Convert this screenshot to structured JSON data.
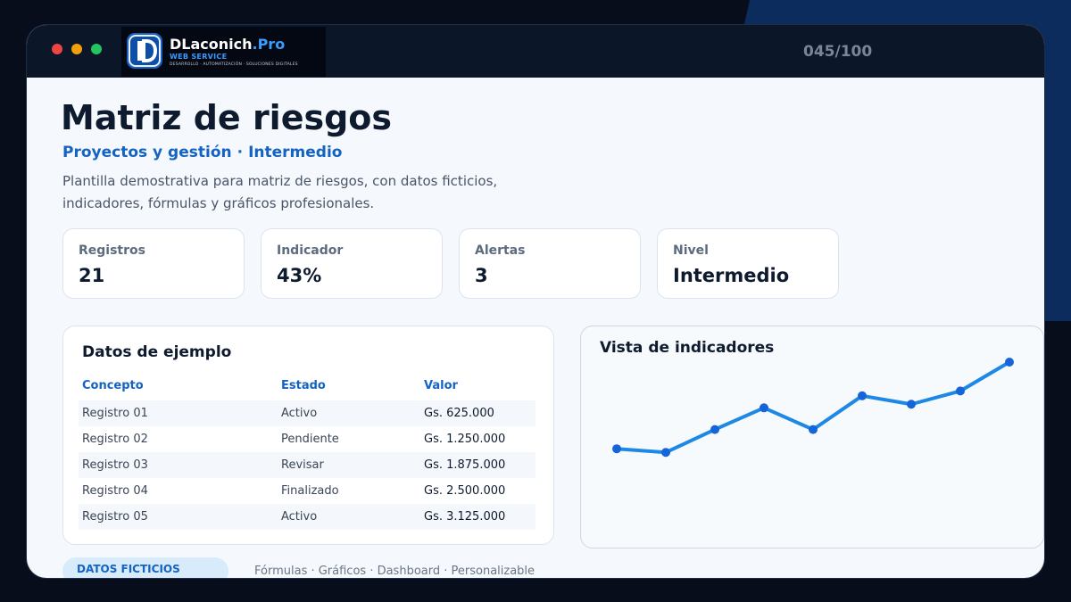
{
  "window": {
    "counter": "045/100"
  },
  "brand": {
    "name": "DLaconich",
    "name_suffix": ".Pro",
    "subtitle": "WEB SERVICE",
    "tagline": "DESARROLLO · AUTOMATIZACIÓN · SOLUCIONES DIGITALES"
  },
  "header": {
    "title": "Matriz de riesgos",
    "category": "Proyectos y gestión",
    "separator": "·",
    "level": "Intermedio",
    "description": "Plantilla demostrativa para matriz de riesgos, con datos ficticios, indicadores, fórmulas y gráficos profesionales."
  },
  "stats": [
    {
      "label": "Registros",
      "value": "21"
    },
    {
      "label": "Indicador",
      "value": "43%"
    },
    {
      "label": "Alertas",
      "value": "3"
    },
    {
      "label": "Nivel",
      "value": "Intermedio"
    }
  ],
  "table": {
    "title": "Datos de ejemplo",
    "columns": [
      "Concepto",
      "Estado",
      "Valor"
    ],
    "rows": [
      [
        "Registro 01",
        "Activo",
        "Gs. 625.000"
      ],
      [
        "Registro 02",
        "Pendiente",
        "Gs. 1.250.000"
      ],
      [
        "Registro 03",
        "Revisar",
        "Gs. 1.875.000"
      ],
      [
        "Registro 04",
        "Finalizado",
        "Gs. 2.500.000"
      ],
      [
        "Registro 05",
        "Activo",
        "Gs. 3.125.000"
      ]
    ]
  },
  "chart": {
    "title": "Vista de indicadores"
  },
  "chart_data": {
    "type": "line",
    "x": [
      1,
      2,
      3,
      4,
      5,
      6,
      7,
      8,
      9
    ],
    "values": [
      28,
      25,
      44,
      62,
      44,
      72,
      65,
      76,
      100
    ],
    "ylim": [
      0,
      100
    ],
    "grid": false,
    "color": "#1e88e5",
    "point_color": "#1565d8"
  },
  "footer": {
    "badge": "DATOS FICTICIOS",
    "features": "Fórmulas · Gráficos · Dashboard · Personalizable"
  },
  "colors": {
    "accent": "#1463c2",
    "dark": "#0c1629",
    "background": "#f5f8fc"
  }
}
